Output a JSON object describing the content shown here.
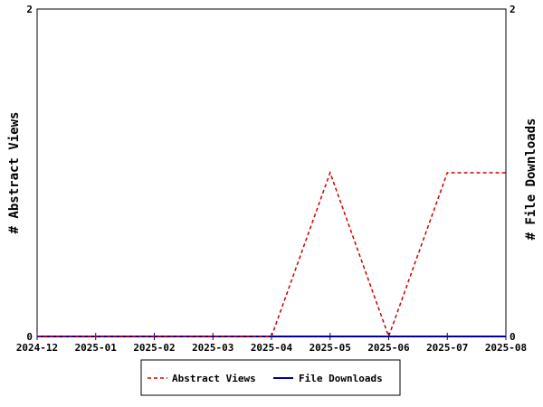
{
  "chart_data": {
    "type": "line",
    "x": [
      "2024-12",
      "2025-01",
      "2025-02",
      "2025-03",
      "2025-04",
      "2025-05",
      "2025-06",
      "2025-07",
      "2025-08"
    ],
    "series": [
      {
        "name": "Abstract Views",
        "axis": "left",
        "color": "#cc0000",
        "line_style": "dashed",
        "values": [
          0,
          0,
          0,
          0,
          0,
          1,
          0,
          1,
          1
        ]
      },
      {
        "name": "File Downloads",
        "axis": "right",
        "color": "#000099",
        "line_style": "solid",
        "values": [
          0,
          0,
          0,
          0,
          0,
          0,
          0,
          0,
          0
        ]
      }
    ],
    "ylabel": "# Abstract Views",
    "y2label": "# File Downloads",
    "ylim": [
      0,
      2
    ],
    "y2lim": [
      0,
      2
    ],
    "yticks": [
      "0",
      "2"
    ],
    "y2ticks": [
      "0",
      "2"
    ],
    "grid": false,
    "legend_position": "bottom-center"
  }
}
